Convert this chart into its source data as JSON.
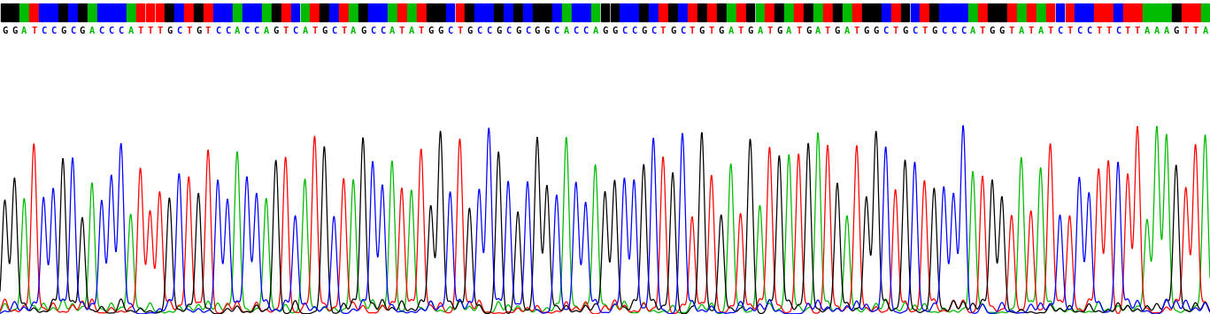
{
  "sequence": "GGATCCGCGACCCATTTGCTGTCCACCAGTCATGCTAGCCATATGGCTGCCGCGCGGCACCAGGCCGCTGCTGTGATGATGATGATGATGGCTGCTGCCCATGGTATATCTCCTTCTTAAAGTTA",
  "base_colors": {
    "A": "#00bb00",
    "T": "#ff0000",
    "G": "#000000",
    "C": "#0000ff"
  },
  "background_color": "#ffffff",
  "fig_width": 13.67,
  "fig_height": 3.55,
  "dpi": 100,
  "wave_amplitude": 1.0,
  "peak_sigma_factor": 0.28,
  "background_amp_max": 0.08,
  "called_amp_min": 0.5,
  "called_amp_max": 1.0,
  "label_fontsize": 7.5,
  "lw": 0.9
}
